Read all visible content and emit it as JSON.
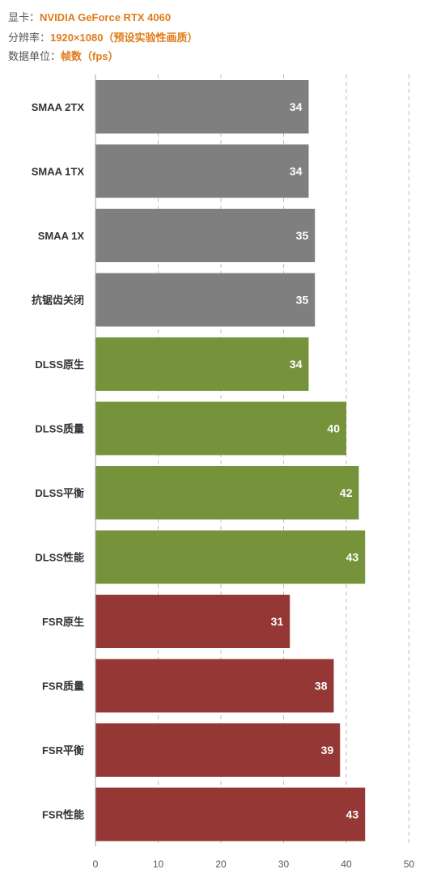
{
  "header": {
    "gpu_label": "显卡：",
    "gpu_value": "NVIDIA GeForce RTX 4060",
    "res_label": "分辨率：",
    "res_value": "1920×1080（预设实验性画质）",
    "unit_label": "数据单位：",
    "unit_value": "帧数（fps）"
  },
  "colors": {
    "smaa": "#7f7f7f",
    "dlss": "#76933c",
    "fsr": "#953735",
    "accent": "#e07b1a"
  },
  "chart_data": {
    "type": "bar",
    "orientation": "horizontal",
    "categories": [
      "SMAA 2TX",
      "SMAA 1TX",
      "SMAA 1X",
      "抗锯齿关闭",
      "DLSS原生",
      "DLSS质量",
      "DLSS平衡",
      "DLSS性能",
      "FSR原生",
      "FSR质量",
      "FSR平衡",
      "FSR性能"
    ],
    "values": [
      34,
      34,
      35,
      35,
      34,
      40,
      42,
      43,
      31,
      38,
      39,
      43
    ],
    "bar_colors": [
      "#7f7f7f",
      "#7f7f7f",
      "#7f7f7f",
      "#7f7f7f",
      "#76933c",
      "#76933c",
      "#76933c",
      "#76933c",
      "#953735",
      "#953735",
      "#953735",
      "#953735"
    ],
    "xlim": [
      0,
      50
    ],
    "xticks": [
      0,
      10,
      20,
      30,
      40,
      50
    ],
    "grid": true
  }
}
